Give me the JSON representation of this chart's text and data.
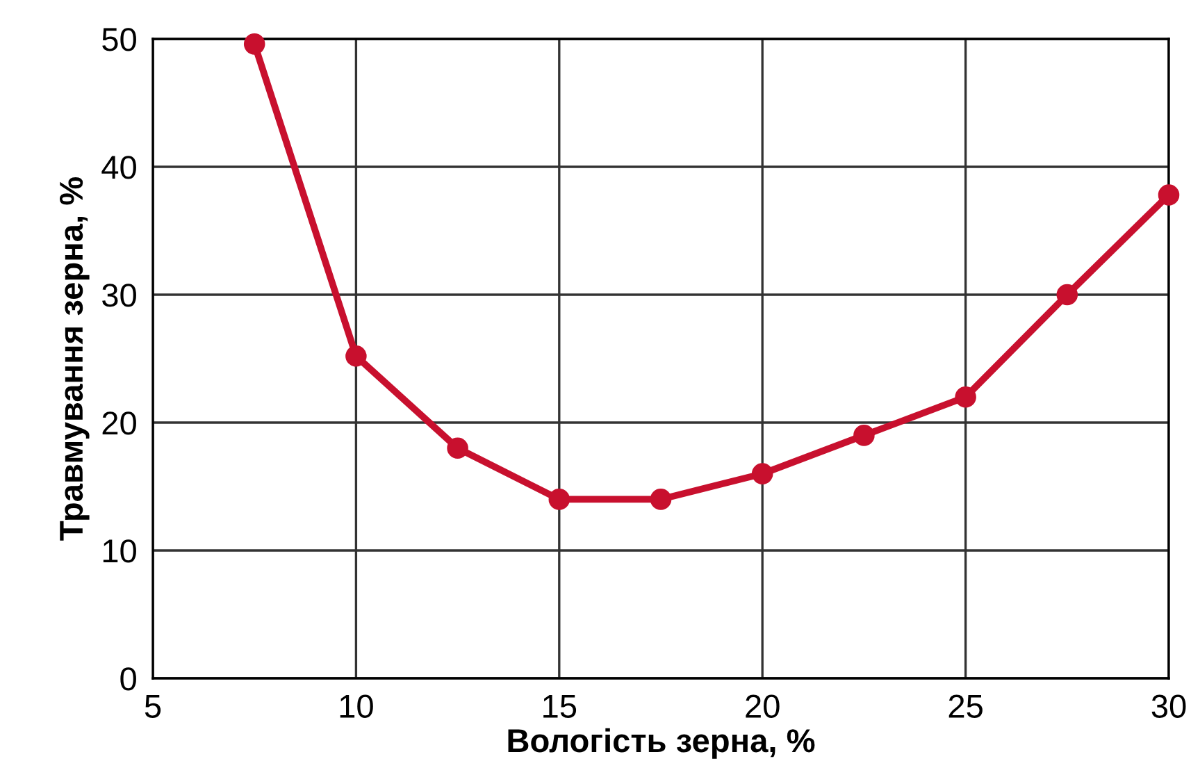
{
  "chart_data": {
    "type": "line",
    "xlabel": "Вологість зерна, %",
    "ylabel": "Травмування зерна, %",
    "x": [
      7.5,
      10,
      12.5,
      15,
      17.5,
      20,
      22.5,
      25,
      27.5,
      30
    ],
    "series": [
      {
        "color": "#c8102e",
        "values": [
          49.6,
          25.2,
          18,
          14,
          14,
          16,
          19,
          22,
          30,
          37.8
        ]
      }
    ],
    "xlim": [
      5,
      30
    ],
    "xticks": [
      5,
      10,
      15,
      20,
      25,
      30
    ],
    "ylim": [
      0,
      50
    ],
    "yticks": [
      0,
      10,
      20,
      30,
      40,
      50
    ],
    "grid": true,
    "marker": "circle",
    "line_style": "solid"
  }
}
